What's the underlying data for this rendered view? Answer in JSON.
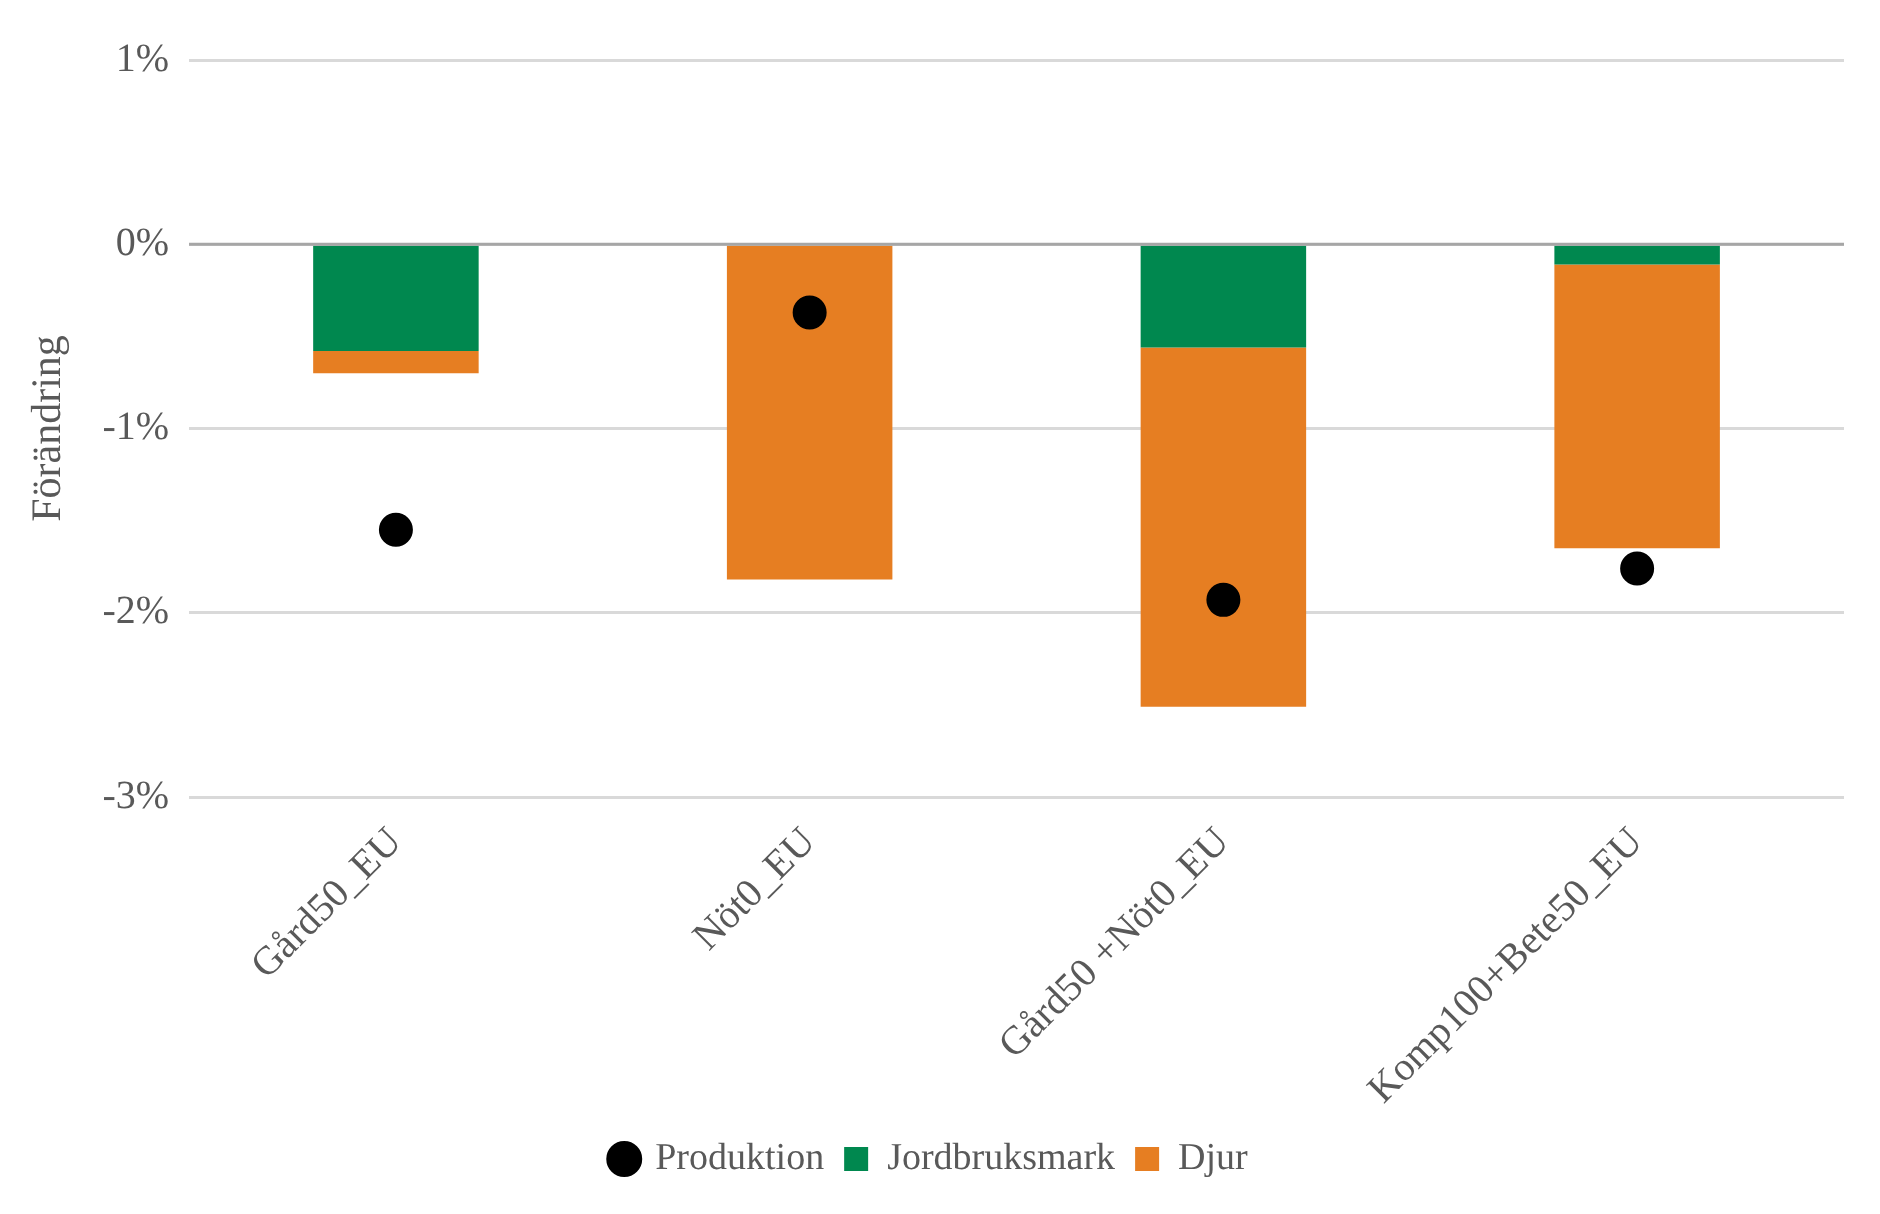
{
  "chart_data": {
    "type": "bar",
    "stacked": true,
    "ylabel": "Förändring",
    "categories": [
      "Gård50_EU",
      "Nöt0_EU",
      "Gård50 +Nöt0_EU",
      "Komp100+Bete50_EU"
    ],
    "series": [
      {
        "name": "Jordbruksmark",
        "color": "#00884f",
        "values": [
          -0.58,
          0,
          -0.56,
          -0.11
        ]
      },
      {
        "name": "Djur",
        "color": "#e67e22",
        "values": [
          -0.12,
          -1.82,
          -1.95,
          -1.54
        ]
      },
      {
        "name": "Produktion",
        "type": "scatter",
        "color": "#000000",
        "values": [
          -1.55,
          -0.37,
          -1.93,
          -1.76
        ]
      }
    ],
    "ylim": [
      -3,
      1
    ],
    "yticks": [
      {
        "value": -3,
        "label": "-3%"
      },
      {
        "value": -2,
        "label": "-2%"
      },
      {
        "value": -1,
        "label": "-1%"
      },
      {
        "value": 0,
        "label": "0%"
      },
      {
        "value": 1,
        "label": "1%"
      }
    ],
    "grid": "y",
    "legend": "bottom",
    "marker": "circle",
    "ref_lines": [
      {
        "axis": "y",
        "value": 0,
        "color": "#a6a6a6"
      }
    ]
  }
}
